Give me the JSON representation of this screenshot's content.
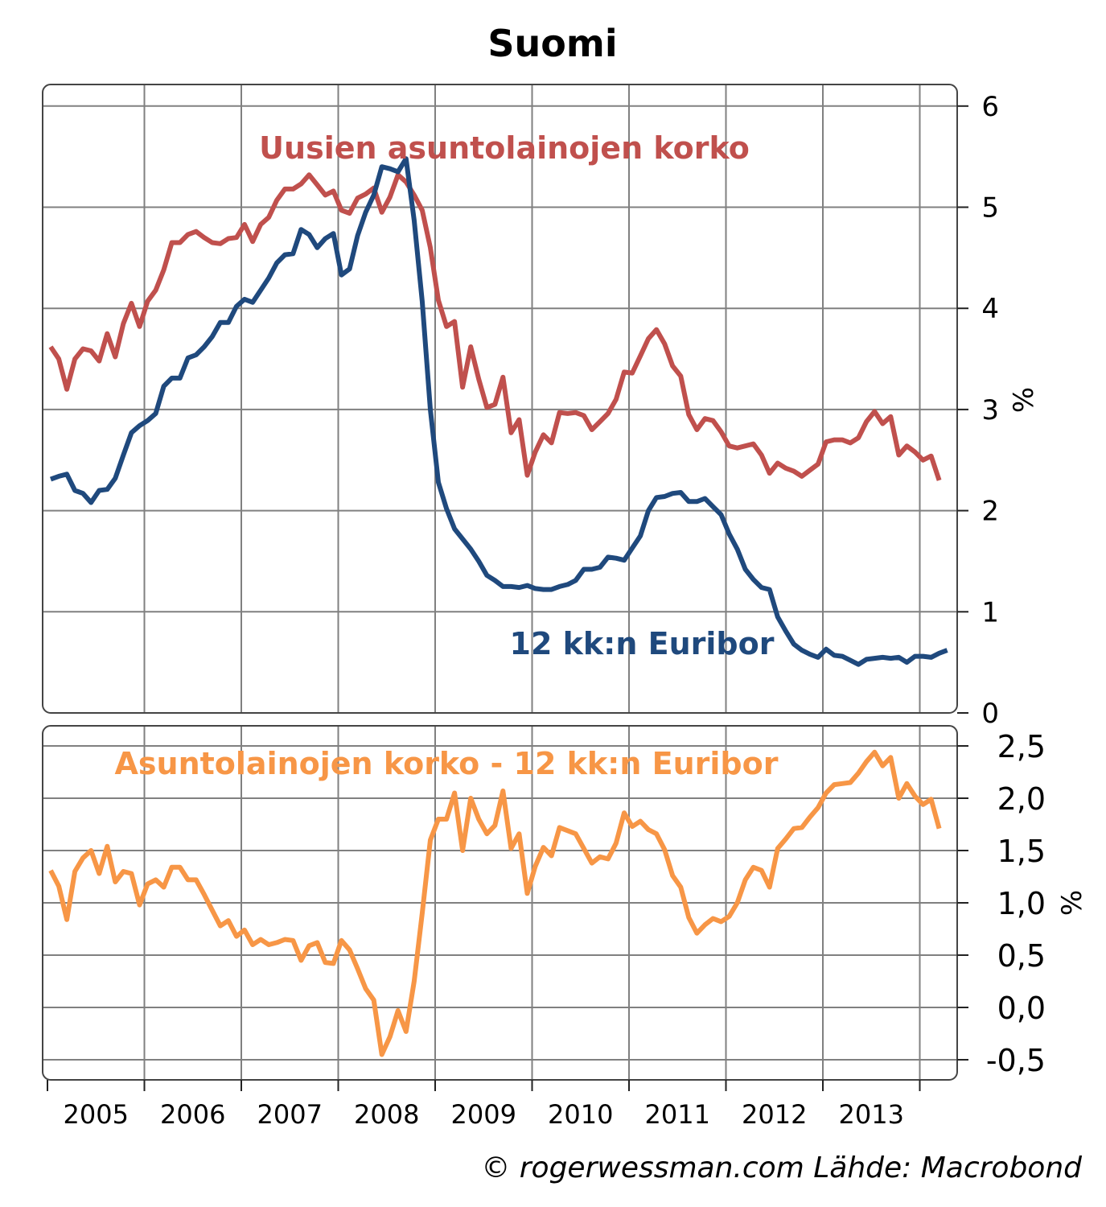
{
  "title": "Suomi",
  "footer": "© rogerwessman.com Lähde: Macrobond",
  "colors": {
    "mortgage": "#c0504d",
    "euribor": "#1f497d",
    "spread": "#f79646",
    "grid": "#808080"
  },
  "chart_data": [
    {
      "type": "line",
      "title": "Suomi",
      "ylabel": "%",
      "ylim": [
        0,
        6
      ],
      "yticks": [
        {
          "v": 0,
          "label": "0"
        },
        {
          "v": 1,
          "label": "1"
        },
        {
          "v": 2,
          "label": "2"
        },
        {
          "v": 3,
          "label": "3"
        },
        {
          "v": 4,
          "label": "4"
        },
        {
          "v": 5,
          "label": "5"
        },
        {
          "v": 6,
          "label": "6"
        }
      ],
      "x_start": "2005-01",
      "frequency": "monthly",
      "xticks": [
        "2005",
        "2006",
        "2007",
        "2008",
        "2009",
        "2010",
        "2011",
        "2012",
        "2013"
      ],
      "grid": true,
      "series": [
        {
          "name": "Uusien asuntolainojen korko",
          "color": "#c0504d",
          "values": [
            3.62,
            3.5,
            3.2,
            3.5,
            3.6,
            3.58,
            3.48,
            3.75,
            3.52,
            3.85,
            4.05,
            3.82,
            4.07,
            4.18,
            4.38,
            4.65,
            4.65,
            4.73,
            4.76,
            4.7,
            4.65,
            4.64,
            4.69,
            4.7,
            4.83,
            4.66,
            4.83,
            4.9,
            5.07,
            5.18,
            5.18,
            5.23,
            5.32,
            5.22,
            5.12,
            5.16,
            4.97,
            4.94,
            5.09,
            5.13,
            5.19,
            4.95,
            5.1,
            5.32,
            5.25,
            5.12,
            4.97,
            4.6,
            4.08,
            3.82,
            3.87,
            3.22,
            3.62,
            3.3,
            3.02,
            3.05,
            3.32,
            2.77,
            2.9,
            2.35,
            2.58,
            2.75,
            2.67,
            2.97,
            2.96,
            2.97,
            2.94,
            2.8,
            2.88,
            2.96,
            3.1,
            3.37,
            3.36,
            3.53,
            3.7,
            3.79,
            3.65,
            3.43,
            3.33,
            2.95,
            2.8,
            2.91,
            2.89,
            2.78,
            2.64,
            2.62,
            2.64,
            2.66,
            2.55,
            2.37,
            2.47,
            2.42,
            2.39,
            2.34,
            2.4,
            2.46,
            2.68,
            2.7,
            2.7,
            2.67,
            2.72,
            2.88,
            2.98,
            2.86,
            2.93,
            2.55,
            2.64,
            2.58,
            2.5,
            2.54,
            2.3
          ]
        },
        {
          "name": "12 kk:n Euribor",
          "color": "#1f497d",
          "values": [
            2.31,
            2.34,
            2.36,
            2.2,
            2.17,
            2.08,
            2.2,
            2.21,
            2.32,
            2.55,
            2.77,
            2.84,
            2.89,
            2.96,
            3.23,
            3.31,
            3.31,
            3.51,
            3.54,
            3.62,
            3.72,
            3.86,
            3.86,
            4.02,
            4.09,
            4.06,
            4.18,
            4.3,
            4.45,
            4.53,
            4.54,
            4.78,
            4.73,
            4.6,
            4.69,
            4.74,
            4.33,
            4.39,
            4.72,
            4.95,
            5.12,
            5.4,
            5.38,
            5.35,
            5.48,
            4.87,
            4.07,
            3.0,
            2.28,
            2.02,
            1.82,
            1.72,
            1.62,
            1.5,
            1.36,
            1.31,
            1.25,
            1.25,
            1.24,
            1.26,
            1.23,
            1.22,
            1.22,
            1.25,
            1.27,
            1.31,
            1.42,
            1.42,
            1.44,
            1.54,
            1.53,
            1.51,
            1.63,
            1.75,
            2.0,
            2.13,
            2.14,
            2.17,
            2.18,
            2.09,
            2.09,
            2.12,
            2.04,
            1.96,
            1.77,
            1.62,
            1.42,
            1.32,
            1.24,
            1.22,
            0.95,
            0.81,
            0.68,
            0.62,
            0.58,
            0.55,
            0.63,
            0.57,
            0.56,
            0.52,
            0.48,
            0.53,
            0.54,
            0.55,
            0.54,
            0.55,
            0.5,
            0.56,
            0.56,
            0.55,
            0.59,
            0.62
          ]
        }
      ]
    },
    {
      "type": "line",
      "ylabel": "%",
      "ylim": [
        -0.6,
        2.65
      ],
      "yticks": [
        {
          "v": -0.5,
          "label": "-0,5"
        },
        {
          "v": 0,
          "label": "0,0"
        },
        {
          "v": 0.5,
          "label": "0,5"
        },
        {
          "v": 1,
          "label": "1,0"
        },
        {
          "v": 1.5,
          "label": "1,5"
        },
        {
          "v": 2,
          "label": "2,0"
        },
        {
          "v": 2.5,
          "label": "2,5"
        }
      ],
      "x_start": "2005-01",
      "frequency": "monthly",
      "grid": true,
      "series": [
        {
          "name": "Asuntolainojen korko - 12 kk:n Euribor",
          "color": "#f79646",
          "values": [
            1.31,
            1.16,
            0.84,
            1.3,
            1.43,
            1.5,
            1.28,
            1.54,
            1.2,
            1.3,
            1.28,
            0.98,
            1.18,
            1.22,
            1.15,
            1.34,
            1.34,
            1.22,
            1.22,
            1.08,
            0.93,
            0.78,
            0.83,
            0.68,
            0.74,
            0.6,
            0.65,
            0.6,
            0.62,
            0.65,
            0.64,
            0.45,
            0.59,
            0.62,
            0.43,
            0.42,
            0.64,
            0.55,
            0.37,
            0.18,
            0.07,
            -0.45,
            -0.28,
            -0.03,
            -0.23,
            0.25,
            0.9,
            1.6,
            1.8,
            1.8,
            2.05,
            1.5,
            2.0,
            1.8,
            1.66,
            1.74,
            2.07,
            1.52,
            1.66,
            1.09,
            1.35,
            1.53,
            1.45,
            1.72,
            1.69,
            1.66,
            1.52,
            1.38,
            1.44,
            1.42,
            1.57,
            1.86,
            1.73,
            1.78,
            1.7,
            1.66,
            1.51,
            1.26,
            1.15,
            0.86,
            0.71,
            0.79,
            0.85,
            0.82,
            0.87,
            1.0,
            1.22,
            1.34,
            1.31,
            1.15,
            1.52,
            1.61,
            1.71,
            1.72,
            1.82,
            1.91,
            2.05,
            2.13,
            2.14,
            2.15,
            2.24,
            2.35,
            2.44,
            2.31,
            2.39,
            2.0,
            2.14,
            2.02,
            1.94,
            1.99,
            1.71
          ]
        }
      ]
    }
  ]
}
